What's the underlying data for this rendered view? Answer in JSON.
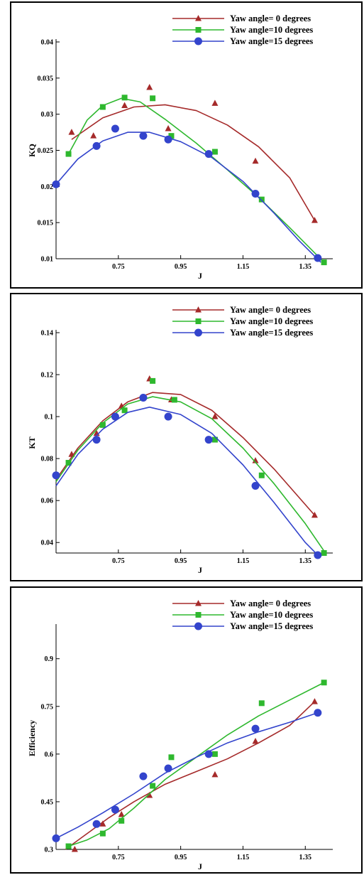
{
  "chart_data": [
    {
      "type": "line",
      "ylabel": "KQ",
      "xlabel": "J",
      "xlim": [
        0.55,
        1.42
      ],
      "ylim": [
        0.01,
        0.04
      ],
      "xticks": [
        "0.75",
        "0.95",
        "1.15",
        "1.35"
      ],
      "xtick_values": [
        0.75,
        0.95,
        1.15,
        1.35
      ],
      "yticks": [
        "0.01",
        "0.015",
        "0.02",
        "0.025",
        "0.03",
        "0.035",
        "0.04"
      ],
      "ytick_values": [
        0.01,
        0.015,
        0.02,
        0.025,
        0.03,
        0.035,
        0.04
      ],
      "legend_position": "top-right",
      "series": [
        {
          "name": "Yaw angle= 0 degrees",
          "color": "#a52a2a",
          "marker": "triangle",
          "x": [
            0.6,
            0.67,
            0.77,
            0.85,
            0.91,
            1.06,
            1.19,
            1.38
          ],
          "y": [
            0.0275,
            0.027,
            0.0312,
            0.0337,
            0.028,
            0.0315,
            0.0235,
            0.0153
          ],
          "fit": [
            [
              0.6,
              0.0265
            ],
            [
              0.7,
              0.0295
            ],
            [
              0.8,
              0.031
            ],
            [
              0.9,
              0.0313
            ],
            [
              1.0,
              0.0305
            ],
            [
              1.1,
              0.0285
            ],
            [
              1.2,
              0.0255
            ],
            [
              1.3,
              0.0212
            ],
            [
              1.38,
              0.0153
            ]
          ]
        },
        {
          "name": "Yaw angle=10 degrees",
          "color": "#2eb82e",
          "marker": "square",
          "x": [
            0.59,
            0.7,
            0.77,
            0.86,
            0.92,
            1.06,
            1.21,
            1.41
          ],
          "y": [
            0.0245,
            0.031,
            0.0323,
            0.0322,
            0.027,
            0.0248,
            0.0182,
            0.0095
          ],
          "fit": [
            [
              0.59,
              0.0245
            ],
            [
              0.65,
              0.0292
            ],
            [
              0.7,
              0.0312
            ],
            [
              0.76,
              0.0322
            ],
            [
              0.82,
              0.0317
            ],
            [
              0.9,
              0.0293
            ],
            [
              1.0,
              0.026
            ],
            [
              1.1,
              0.0223
            ],
            [
              1.2,
              0.0185
            ],
            [
              1.3,
              0.0143
            ],
            [
              1.41,
              0.0095
            ]
          ]
        },
        {
          "name": "Yaw angle=15 degrees",
          "color": "#3344cc",
          "marker": "circle",
          "x": [
            0.55,
            0.68,
            0.74,
            0.83,
            0.91,
            1.04,
            1.19,
            1.39
          ],
          "y": [
            0.0203,
            0.0256,
            0.028,
            0.027,
            0.0265,
            0.0245,
            0.019,
            0.0101
          ],
          "fit": [
            [
              0.55,
              0.0203
            ],
            [
              0.62,
              0.0238
            ],
            [
              0.7,
              0.0263
            ],
            [
              0.78,
              0.0275
            ],
            [
              0.85,
              0.0275
            ],
            [
              0.95,
              0.0262
            ],
            [
              1.05,
              0.024
            ],
            [
              1.15,
              0.0207
            ],
            [
              1.25,
              0.0163
            ],
            [
              1.33,
              0.0125
            ],
            [
              1.4,
              0.0095
            ]
          ]
        }
      ]
    },
    {
      "type": "line",
      "ylabel": "KT",
      "xlabel": "J",
      "xlim": [
        0.55,
        1.42
      ],
      "ylim": [
        0.035,
        0.14
      ],
      "xticks": [
        "0.75",
        "0.95",
        "1.15",
        "1.35"
      ],
      "xtick_values": [
        0.75,
        0.95,
        1.15,
        1.35
      ],
      "yticks": [
        "0.04",
        "0.06",
        "0.08",
        "0.1",
        "0.12",
        "0.14"
      ],
      "ytick_values": [
        0.04,
        0.06,
        0.08,
        0.1,
        0.12,
        0.14
      ],
      "legend_position": "top-right",
      "series": [
        {
          "name": "Yaw angle= 0 degrees",
          "color": "#a52a2a",
          "marker": "triangle",
          "x": [
            0.6,
            0.68,
            0.76,
            0.85,
            0.92,
            1.06,
            1.19,
            1.38
          ],
          "y": [
            0.082,
            0.092,
            0.105,
            0.118,
            0.108,
            0.1,
            0.079,
            0.053
          ],
          "fit": [
            [
              0.55,
              0.07
            ],
            [
              0.62,
              0.085
            ],
            [
              0.7,
              0.098
            ],
            [
              0.78,
              0.107
            ],
            [
              0.86,
              0.1115
            ],
            [
              0.95,
              0.1105
            ],
            [
              1.05,
              0.103
            ],
            [
              1.15,
              0.09
            ],
            [
              1.25,
              0.075
            ],
            [
              1.38,
              0.053
            ]
          ]
        },
        {
          "name": "Yaw angle=10 degrees",
          "color": "#2eb82e",
          "marker": "square",
          "x": [
            0.59,
            0.7,
            0.77,
            0.86,
            0.93,
            1.06,
            1.21,
            1.41
          ],
          "y": [
            0.078,
            0.096,
            0.103,
            0.117,
            0.108,
            0.089,
            0.072,
            0.035
          ],
          "fit": [
            [
              0.55,
              0.069
            ],
            [
              0.62,
              0.084
            ],
            [
              0.7,
              0.097
            ],
            [
              0.78,
              0.106
            ],
            [
              0.86,
              0.1095
            ],
            [
              0.95,
              0.107
            ],
            [
              1.05,
              0.099
            ],
            [
              1.15,
              0.085
            ],
            [
              1.25,
              0.068
            ],
            [
              1.35,
              0.049
            ],
            [
              1.41,
              0.036
            ]
          ]
        },
        {
          "name": "Yaw angle=15 degrees",
          "color": "#3344cc",
          "marker": "circle",
          "x": [
            0.55,
            0.68,
            0.74,
            0.83,
            0.91,
            1.04,
            1.19,
            1.39
          ],
          "y": [
            0.072,
            0.089,
            0.1,
            0.109,
            0.1,
            0.089,
            0.067,
            0.034
          ],
          "fit": [
            [
              0.55,
              0.067
            ],
            [
              0.62,
              0.082
            ],
            [
              0.7,
              0.094
            ],
            [
              0.78,
              0.102
            ],
            [
              0.85,
              0.1045
            ],
            [
              0.95,
              0.101
            ],
            [
              1.05,
              0.092
            ],
            [
              1.15,
              0.077
            ],
            [
              1.25,
              0.059
            ],
            [
              1.35,
              0.04
            ],
            [
              1.39,
              0.034
            ]
          ]
        }
      ]
    },
    {
      "type": "line",
      "ylabel": "Efficiency",
      "xlabel": "J",
      "xlim": [
        0.55,
        1.42
      ],
      "ylim": [
        0.3,
        1.0
      ],
      "xticks": [
        "0.75",
        "0.95",
        "1.15",
        "1.35"
      ],
      "xtick_values": [
        0.75,
        0.95,
        1.15,
        1.35
      ],
      "yticks": [
        "0.3",
        "0.45",
        "0.6",
        "0.75",
        "0.9"
      ],
      "ytick_values": [
        0.3,
        0.45,
        0.6,
        0.75,
        0.9
      ],
      "legend_position": "top-right",
      "series": [
        {
          "name": "Yaw angle= 0 degrees",
          "color": "#a52a2a",
          "marker": "triangle",
          "x": [
            0.61,
            0.7,
            0.76,
            0.85,
            1.06,
            1.19,
            1.38
          ],
          "y": [
            0.3,
            0.38,
            0.41,
            0.47,
            0.535,
            0.64,
            0.765
          ],
          "fit": [
            [
              0.58,
              0.3
            ],
            [
              0.65,
              0.35
            ],
            [
              0.72,
              0.4
            ],
            [
              0.8,
              0.45
            ],
            [
              0.9,
              0.505
            ],
            [
              1.0,
              0.545
            ],
            [
              1.1,
              0.585
            ],
            [
              1.2,
              0.635
            ],
            [
              1.3,
              0.69
            ],
            [
              1.38,
              0.765
            ]
          ]
        },
        {
          "name": "Yaw angle=10 degrees",
          "color": "#2eb82e",
          "marker": "square",
          "x": [
            0.59,
            0.7,
            0.76,
            0.86,
            0.92,
            1.06,
            1.21,
            1.41
          ],
          "y": [
            0.31,
            0.35,
            0.39,
            0.5,
            0.59,
            0.6,
            0.76,
            0.825
          ],
          "fit": [
            [
              0.59,
              0.31
            ],
            [
              0.65,
              0.33
            ],
            [
              0.72,
              0.365
            ],
            [
              0.8,
              0.43
            ],
            [
              0.9,
              0.52
            ],
            [
              1.0,
              0.59
            ],
            [
              1.1,
              0.66
            ],
            [
              1.2,
              0.72
            ],
            [
              1.3,
              0.77
            ],
            [
              1.41,
              0.825
            ]
          ]
        },
        {
          "name": "Yaw angle=15 degrees",
          "color": "#3344cc",
          "marker": "circle",
          "x": [
            0.55,
            0.68,
            0.74,
            0.83,
            0.91,
            1.04,
            1.19,
            1.39
          ],
          "y": [
            0.335,
            0.38,
            0.425,
            0.53,
            0.555,
            0.6,
            0.68,
            0.73
          ],
          "fit": [
            [
              0.55,
              0.335
            ],
            [
              0.62,
              0.37
            ],
            [
              0.7,
              0.415
            ],
            [
              0.8,
              0.475
            ],
            [
              0.9,
              0.54
            ],
            [
              1.0,
              0.59
            ],
            [
              1.1,
              0.635
            ],
            [
              1.2,
              0.67
            ],
            [
              1.3,
              0.7
            ],
            [
              1.39,
              0.73
            ]
          ]
        }
      ]
    }
  ]
}
